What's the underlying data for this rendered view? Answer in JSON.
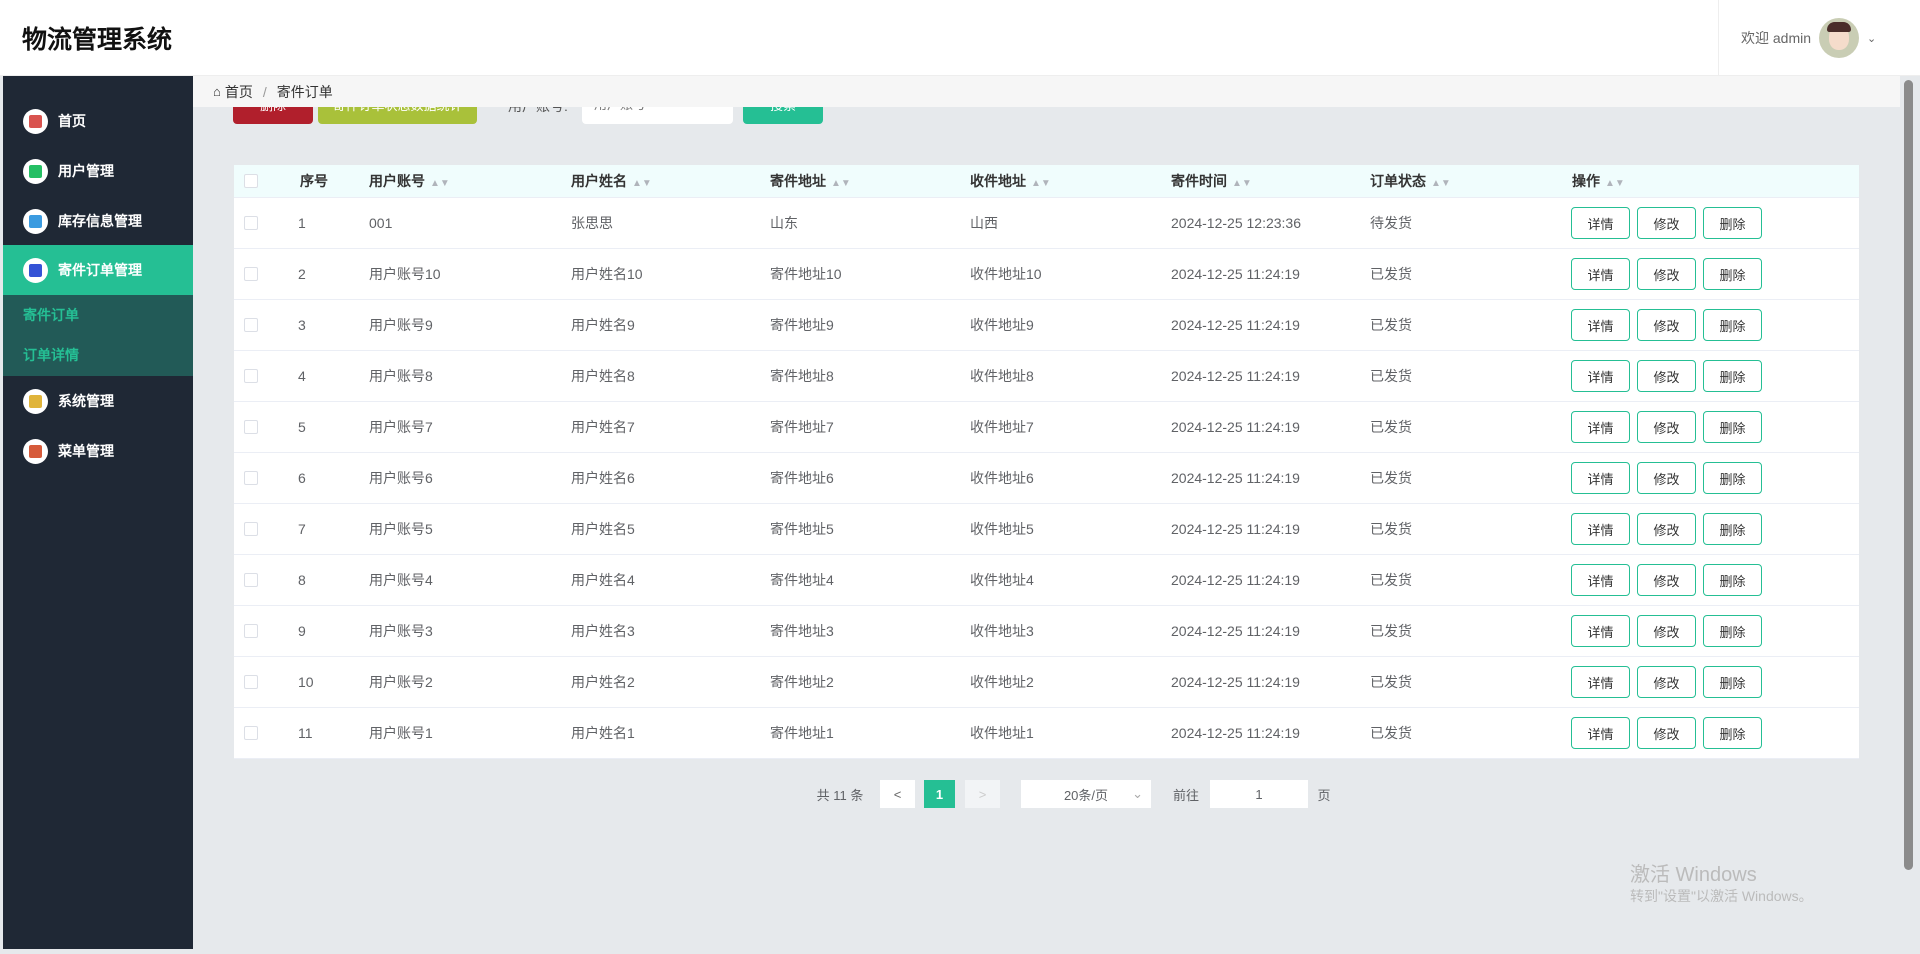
{
  "app": {
    "title": "物流管理系统",
    "welcome": "欢迎 admin"
  },
  "sidebar": {
    "items": [
      {
        "label": "首页",
        "icon": "home-icon",
        "color": "#d9534f"
      },
      {
        "label": "用户管理",
        "icon": "user-icon",
        "color": "#25bf64"
      },
      {
        "label": "库存信息管理",
        "icon": "database-icon",
        "color": "#3b9be0"
      },
      {
        "label": "寄件订单管理",
        "icon": "order-icon",
        "color": "#3553d6",
        "active": true
      },
      {
        "label": "系统管理",
        "icon": "grid-icon",
        "color": "#e0b43a"
      },
      {
        "label": "菜单管理",
        "icon": "menu-icon",
        "color": "#d65a3a"
      }
    ],
    "submenu": [
      "寄件订单",
      "订单详情"
    ]
  },
  "breadcrumb": {
    "home": "首页",
    "sep": "/",
    "current": "寄件订单"
  },
  "toolbar": {
    "delete": "删除",
    "stats": "寄件订单状态数据统计",
    "search_label": "用户账号:",
    "search_placeholder": "用户账号",
    "search": "搜索",
    "colors": {
      "delete": "#b11f2c",
      "stats": "#a9c13a",
      "search": "#25bf94"
    }
  },
  "table": {
    "headers": [
      "序号",
      "用户账号",
      "用户姓名",
      "寄件地址",
      "收件地址",
      "寄件时间",
      "订单状态",
      "操作"
    ],
    "actions": [
      "详情",
      "修改",
      "删除"
    ],
    "rows": [
      [
        "1",
        "001",
        "张思思",
        "山东",
        "山西",
        "2024-12-25 12:23:36",
        "待发货"
      ],
      [
        "2",
        "用户账号10",
        "用户姓名10",
        "寄件地址10",
        "收件地址10",
        "2024-12-25 11:24:19",
        "已发货"
      ],
      [
        "3",
        "用户账号9",
        "用户姓名9",
        "寄件地址9",
        "收件地址9",
        "2024-12-25 11:24:19",
        "已发货"
      ],
      [
        "4",
        "用户账号8",
        "用户姓名8",
        "寄件地址8",
        "收件地址8",
        "2024-12-25 11:24:19",
        "已发货"
      ],
      [
        "5",
        "用户账号7",
        "用户姓名7",
        "寄件地址7",
        "收件地址7",
        "2024-12-25 11:24:19",
        "已发货"
      ],
      [
        "6",
        "用户账号6",
        "用户姓名6",
        "寄件地址6",
        "收件地址6",
        "2024-12-25 11:24:19",
        "已发货"
      ],
      [
        "7",
        "用户账号5",
        "用户姓名5",
        "寄件地址5",
        "收件地址5",
        "2024-12-25 11:24:19",
        "已发货"
      ],
      [
        "8",
        "用户账号4",
        "用户姓名4",
        "寄件地址4",
        "收件地址4",
        "2024-12-25 11:24:19",
        "已发货"
      ],
      [
        "9",
        "用户账号3",
        "用户姓名3",
        "寄件地址3",
        "收件地址3",
        "2024-12-25 11:24:19",
        "已发货"
      ],
      [
        "10",
        "用户账号2",
        "用户姓名2",
        "寄件地址2",
        "收件地址2",
        "2024-12-25 11:24:19",
        "已发货"
      ],
      [
        "11",
        "用户账号1",
        "用户姓名1",
        "寄件地址1",
        "收件地址1",
        "2024-12-25 11:24:19",
        "已发货"
      ]
    ]
  },
  "pagination": {
    "total": "共 11 条",
    "prev": "<",
    "page": "1",
    "next": ">",
    "page_size": "20条/页",
    "goto": "前往",
    "goto_value": "1",
    "page_unit": "页"
  },
  "watermark": {
    "line1": "激活 Windows",
    "line2": "转到\"设置\"以激活 Windows。"
  }
}
